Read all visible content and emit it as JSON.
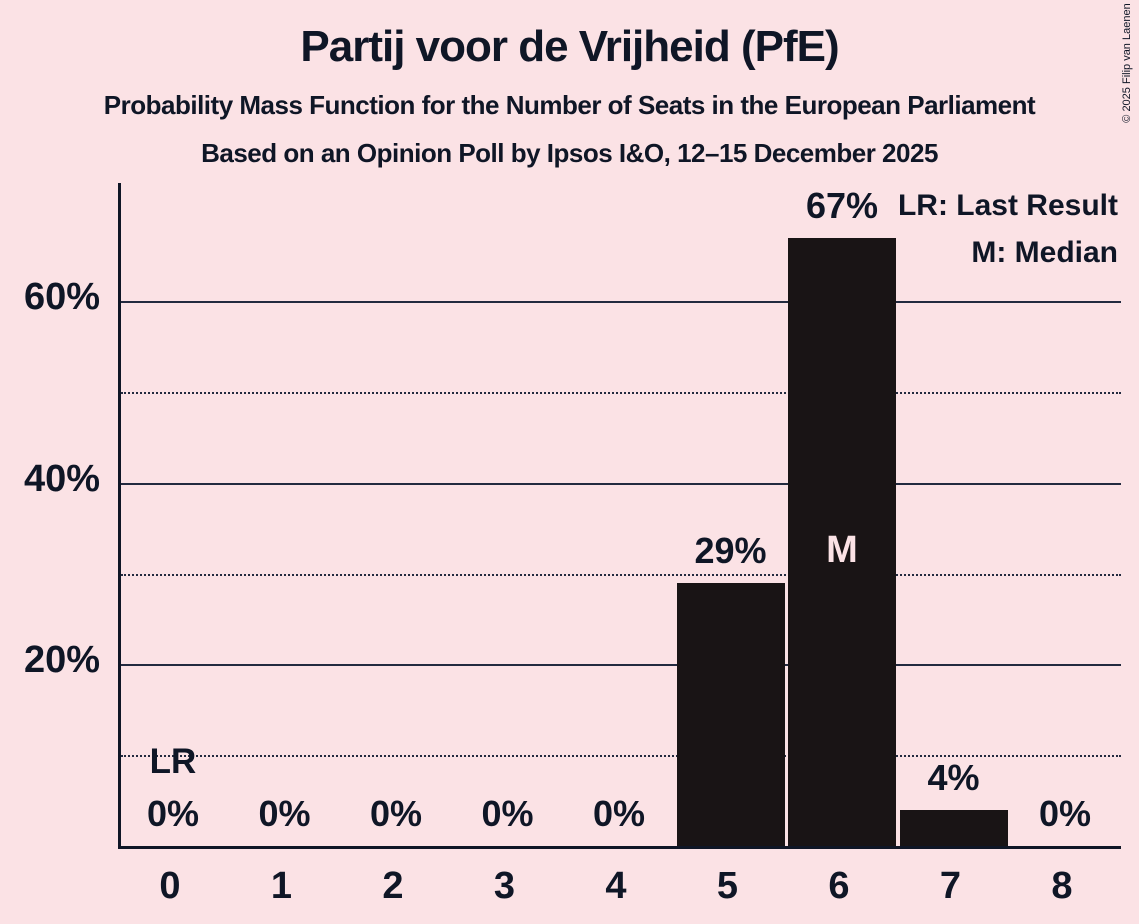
{
  "header": {
    "title": "Partij voor de Vrijheid (PfE)",
    "subtitle_line1": "Probability Mass Function for the Number of Seats in the European Parliament",
    "subtitle_line2": "Based on an Opinion Poll by Ipsos I&O, 12–15 December 2025"
  },
  "copyright": "© 2025 Filip van Laenen",
  "legend": {
    "last_result": "LR: Last Result",
    "median": "M: Median"
  },
  "colors": {
    "background": "#fbe2e5",
    "bar": "#191415",
    "text": "#0f1626",
    "grid": "#232a3f",
    "median_label": "#fbe2e5"
  },
  "chart_data": {
    "type": "bar",
    "title": "Partij voor de Vrijheid (PfE)",
    "xlabel": "",
    "ylabel": "",
    "categories": [
      "0",
      "1",
      "2",
      "3",
      "4",
      "5",
      "6",
      "7",
      "8"
    ],
    "values": [
      0,
      0,
      0,
      0,
      0,
      29,
      67,
      4,
      0
    ],
    "value_labels": [
      "0%",
      "0%",
      "0%",
      "0%",
      "0%",
      "29%",
      "67%",
      "4%",
      "0%"
    ],
    "ylim": [
      0,
      73
    ],
    "yticks": [
      {
        "value": 20,
        "label": "20%"
      },
      {
        "value": 40,
        "label": "40%"
      },
      {
        "value": 60,
        "label": "60%"
      }
    ],
    "gridlines_solid": [
      20,
      40,
      60
    ],
    "gridlines_dotted": [
      10,
      30,
      50
    ],
    "legend_position": "top-right",
    "annotations": {
      "last_result": {
        "seat_index": 0,
        "label": "LR"
      },
      "median": {
        "seat_index": 6,
        "label": "M"
      }
    }
  }
}
